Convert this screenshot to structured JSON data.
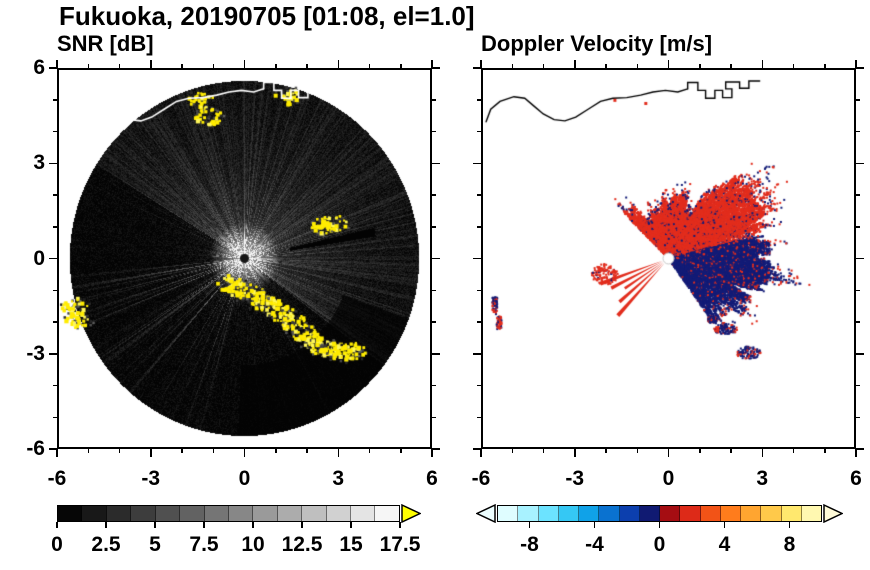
{
  "title": "Fukuoka, 20190705 [01:08, el=1.0]",
  "panels": [
    {
      "title": "SNR [dB]"
    },
    {
      "title": "Doppler Velocity [m/s]"
    }
  ],
  "axes": {
    "xlim": [
      -6,
      6
    ],
    "ylim": [
      -6,
      6
    ],
    "major_ticks": [
      -6,
      -3,
      0,
      3,
      6
    ],
    "tick_labels": [
      "-6",
      "-3",
      "0",
      "3",
      "6"
    ],
    "minor_tick_step": 1
  },
  "colorbars": [
    {
      "name": "snr",
      "range": [
        0,
        17.5
      ],
      "colormap": "grayscale",
      "segments": 14,
      "tick_values": [
        0,
        2.5,
        5,
        7.5,
        10,
        12.5,
        15,
        17.5
      ],
      "tick_labels": [
        "0",
        "2.5",
        "5",
        "7.5",
        "10",
        "12.5",
        "15",
        "17.5"
      ],
      "over_arrow_color": "#ffff00"
    },
    {
      "name": "velocity",
      "range": [
        -10,
        10
      ],
      "colors": [
        "#dffdff",
        "#a8f2ff",
        "#6ce3ff",
        "#35c8f4",
        "#10a2e8",
        "#0a72d0",
        "#0c3fae",
        "#101a72",
        "#a50d12",
        "#dd2a18",
        "#f25317",
        "#ff7c1c",
        "#ffa530",
        "#ffc94a",
        "#ffe86e",
        "#fff8b0"
      ],
      "tick_values": [
        -8,
        -4,
        0,
        4,
        8
      ],
      "tick_labels": [
        "-8",
        "-4",
        "0",
        "4",
        "8"
      ],
      "under_arrow_color": "#ecfeff",
      "over_arrow_color": "#fffbd8"
    }
  ],
  "coastline": {
    "main": [
      [
        -5.9,
        4.35
      ],
      [
        -5.75,
        4.75
      ],
      [
        -5.45,
        5.0
      ],
      [
        -5.0,
        5.15
      ],
      [
        -4.65,
        5.1
      ],
      [
        -4.35,
        4.85
      ],
      [
        -4.05,
        4.6
      ],
      [
        -3.7,
        4.42
      ],
      [
        -3.35,
        4.38
      ],
      [
        -3.0,
        4.5
      ],
      [
        -2.6,
        4.75
      ],
      [
        -2.2,
        5.0
      ],
      [
        -1.8,
        5.1
      ],
      [
        -1.35,
        5.12
      ],
      [
        -0.9,
        5.2
      ],
      [
        -0.5,
        5.3
      ],
      [
        -0.1,
        5.35
      ],
      [
        0.3,
        5.3
      ],
      [
        0.62,
        5.4
      ]
    ],
    "harbor": [
      [
        0.62,
        5.4
      ],
      [
        0.62,
        5.6
      ],
      [
        0.95,
        5.6
      ],
      [
        0.95,
        5.35
      ],
      [
        1.2,
        5.35
      ],
      [
        1.2,
        5.1
      ],
      [
        1.5,
        5.1
      ],
      [
        1.5,
        5.35
      ],
      [
        1.75,
        5.35
      ],
      [
        1.75,
        5.12
      ],
      [
        2.05,
        5.12
      ],
      [
        2.05,
        5.4
      ],
      [
        1.85,
        5.4
      ],
      [
        1.85,
        5.62
      ],
      [
        2.3,
        5.62
      ],
      [
        2.3,
        5.42
      ],
      [
        2.6,
        5.42
      ],
      [
        2.6,
        5.65
      ],
      [
        2.95,
        5.65
      ]
    ]
  },
  "chart_data": [
    {
      "type": "heatmap",
      "title": "SNR [dB]",
      "units": "dB",
      "xlim": [
        -6,
        6
      ],
      "ylim": [
        -6,
        6
      ],
      "value_range": [
        0,
        17.5
      ],
      "scan_radius": 5.65,
      "radar_center_xy": [
        0,
        0
      ],
      "appearance": "dark noisy radar PPI disk on white; gray haze strongest in N-E half, bright radial streaks toward SW, narrow black shadow ray toward ENE, dark sector beyond coastal clutter in SE, bright flare at radar center, white coastline overlay at top",
      "clutter_points_xy": [
        [
          -5.5,
          -1.5
        ],
        [
          -5.4,
          -1.95
        ],
        [
          -0.45,
          -0.8
        ],
        [
          -0.1,
          -1.0
        ],
        [
          0.25,
          -1.15
        ],
        [
          0.6,
          -1.35
        ],
        [
          0.95,
          -1.55
        ],
        [
          1.3,
          -1.8
        ],
        [
          1.6,
          -2.05
        ],
        [
          1.9,
          -2.35
        ],
        [
          2.2,
          -2.6
        ],
        [
          2.5,
          -2.8
        ],
        [
          2.85,
          -2.95
        ],
        [
          3.2,
          -3.0
        ],
        [
          3.55,
          -2.95
        ],
        [
          2.55,
          1.05
        ],
        [
          2.9,
          1.12
        ],
        [
          -1.4,
          5.0
        ],
        [
          -1.15,
          4.5
        ],
        [
          1.35,
          5.15
        ]
      ]
    },
    {
      "type": "scatter",
      "title": "Doppler Velocity [m/s]",
      "units": "m/s",
      "xlim": [
        -6,
        6
      ],
      "ylim": [
        -6,
        6
      ],
      "value_range": [
        -10,
        10
      ],
      "positive_color": "#e22d1d",
      "negative_color": "#131c77",
      "radar_center_xy": [
        0,
        0
      ],
      "blob_azimuth_deg_range": [
        -55,
        135
      ],
      "blob_max_radius": 4.5,
      "split_az_deg": 20,
      "split_slope_deg_per_unit": -4,
      "wedge_rays_az_deg": [
        200,
        207,
        214,
        221,
        228
      ],
      "ray_end_cluster_xy": [
        -2.05,
        -0.5
      ],
      "west_edge_clusters": [
        {
          "c": [
            -5.62,
            -1.5
          ],
          "w": 0.16,
          "h": 0.55,
          "red_frac": 0.45
        },
        {
          "c": [
            -5.48,
            -2.05
          ],
          "w": 0.16,
          "h": 0.42,
          "red_frac": 0.7
        }
      ],
      "south_clusters": [
        {
          "c": [
            1.85,
            -2.25
          ],
          "rx": 0.38,
          "ry": 0.17
        },
        {
          "c": [
            2.6,
            -3.0
          ],
          "rx": 0.42,
          "ry": 0.2
        },
        {
          "c": [
            1.42,
            -1.95
          ],
          "rx": 0.16,
          "ry": 0.1
        }
      ],
      "coast_specks_xy": [
        [
          -1.75,
          5.05
        ],
        [
          -0.75,
          4.95
        ]
      ]
    }
  ]
}
